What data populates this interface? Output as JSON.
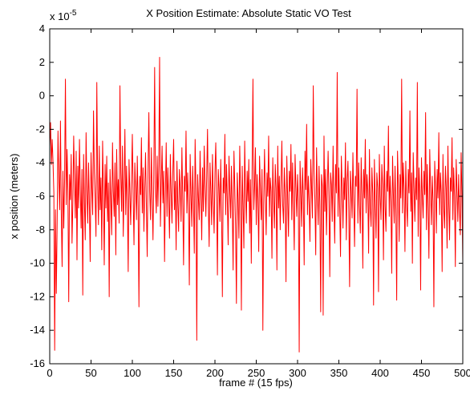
{
  "chart_data": {
    "type": "line",
    "title": "X Position Estimate: Absolute Static VO Test",
    "xlabel": "frame # (15 fps)",
    "ylabel": "x position (meters)",
    "exponent_label": "x 10",
    "exponent_power": "-5",
    "xlim": [
      0,
      500
    ],
    "ylim": [
      -16,
      4
    ],
    "xticks": [
      0,
      50,
      100,
      150,
      200,
      250,
      300,
      350,
      400,
      450,
      500
    ],
    "yticks": [
      -16,
      -14,
      -12,
      -10,
      -8,
      -6,
      -4,
      -2,
      0,
      2,
      4
    ],
    "grid": false,
    "series_color": "#ff0000",
    "series": [
      {
        "values": [
          -3.0,
          -1.6,
          -4.1,
          -2.6,
          -4.0,
          -5.8,
          -15.2,
          -6.8,
          -11.8,
          -7.5,
          -2.1,
          -4.8,
          -6.8,
          -1.5,
          -7.0,
          -10.2,
          -4.5,
          -7.9,
          -5.0,
          1.0,
          -6.5,
          -3.2,
          -5.7,
          -12.3,
          -4.7,
          -6.2,
          -3.5,
          -8.8,
          -6.4,
          -2.4,
          -5.1,
          -7.3,
          -3.3,
          -9.8,
          -4.2,
          -6.7,
          -2.6,
          -5.6,
          -7.9,
          -4.4,
          -11.9,
          -3.5,
          -6.3,
          -8.6,
          -2.2,
          -5.7,
          -7.6,
          -4.0,
          -6.5,
          -9.9,
          -3.4,
          -5.5,
          -7.1,
          -0.9,
          -4.6,
          -6.1,
          -8.4,
          0.8,
          -5.1,
          -7.7,
          -3.0,
          -6.8,
          -4.9,
          -9.2,
          -2.7,
          -5.7,
          -10.1,
          -4.1,
          -6.7,
          -3.6,
          -7.5,
          -5.2,
          -12.0,
          -4.4,
          -6.2,
          -8.3,
          -2.8,
          -5.7,
          -7.2,
          -4.0,
          -9.5,
          -3.2,
          -6.5,
          -5.0,
          -7.6,
          0.6,
          -4.6,
          -6.9,
          -3.0,
          -8.4,
          -5.4,
          -2.0,
          -7.1,
          -4.2,
          -6.3,
          -10.5,
          -3.8,
          -5.8,
          -7.7,
          -4.9,
          -2.3,
          -6.1,
          -8.9,
          -4.0,
          -5.5,
          -7.4,
          -3.6,
          -6.6,
          -12.6,
          -4.8,
          -5.9,
          -2.5,
          -7.0,
          -4.3,
          -8.1,
          -5.6,
          -3.4,
          -6.5,
          -9.6,
          -4.5,
          -1.0,
          -5.7,
          -7.4,
          -3.1,
          -6.2,
          -8.6,
          -4.7,
          1.7,
          -5.5,
          -7.0,
          -3.6,
          -6.6,
          -4.1,
          2.3,
          -7.8,
          -5.2,
          -3.0,
          -6.4,
          -4.5,
          -9.9,
          -5.9,
          -2.8,
          -7.2,
          -4.3,
          -6.1,
          -8.5,
          -3.5,
          -5.8,
          -7.6,
          -4.6,
          -2.6,
          -6.8,
          -5.1,
          -9.2,
          -3.9,
          -6.4,
          -8.1,
          -4.4,
          -5.5,
          -7.5,
          -3.1,
          -6.2,
          -10.1,
          -4.8,
          -5.7,
          -2.1,
          -7.0,
          -4.6,
          -6.6,
          -11.3,
          -3.5,
          -5.9,
          -7.8,
          -4.2,
          -6.3,
          -9.4,
          -2.6,
          -5.6,
          -14.6,
          -4.7,
          -6.1,
          -7.4,
          -3.3,
          -5.8,
          -8.6,
          -4.3,
          -6.9,
          -3.0,
          -5.3,
          -7.2,
          -4.8,
          -2.0,
          -6.5,
          -9.0,
          -4.0,
          -5.7,
          -7.7,
          -3.5,
          -6.3,
          -8.2,
          -4.6,
          -2.8,
          -6.0,
          -10.7,
          -4.4,
          -5.5,
          -7.5,
          -3.8,
          -6.8,
          -12.0,
          -4.9,
          -5.8,
          -2.3,
          -7.1,
          -4.1,
          -6.3,
          -8.9,
          -3.6,
          -5.7,
          -7.3,
          -4.2,
          -6.7,
          -10.4,
          -3.3,
          -5.4,
          -7.9,
          -12.4,
          -4.6,
          -6.2,
          -8.5,
          -3.0,
          -5.9,
          -12.8,
          -4.2,
          -6.5,
          -9.1,
          -2.7,
          -5.8,
          -7.6,
          -4.5,
          -6.3,
          -3.8,
          -8.2,
          -5.0,
          -10.0,
          -4.3,
          1.0,
          -6.8,
          -5.4,
          -3.1,
          -7.7,
          -4.7,
          -6.1,
          -9.3,
          -3.6,
          -5.6,
          -7.4,
          -4.4,
          -14.0,
          -6.5,
          -3.2,
          -5.8,
          -8.3,
          -4.6,
          -6.0,
          -2.4,
          -7.2,
          -4.9,
          -5.7,
          -9.7,
          -3.7,
          -6.3,
          -7.9,
          -4.1,
          -5.5,
          -10.4,
          -3.0,
          -6.7,
          -4.8,
          -8.0,
          -5.2,
          -2.7,
          -6.5,
          -7.6,
          -4.3,
          -5.9,
          -11.1,
          -3.6,
          -6.1,
          -8.4,
          -4.5,
          -5.7,
          -2.9,
          -7.4,
          -4.0,
          -6.6,
          -9.2,
          -3.5,
          -5.5,
          -7.2,
          -4.7,
          -6.3,
          -15.3,
          -3.9,
          -5.8,
          -7.8,
          -4.3,
          -6.1,
          -10.1,
          -3.3,
          -5.6,
          -1.7,
          -7.1,
          -4.8,
          -6.4,
          -8.7,
          -3.8,
          -5.5,
          -7.3,
          0.6,
          -4.5,
          -6.2,
          -9.5,
          -3.1,
          -5.9,
          -7.7,
          -4.2,
          -6.6,
          -12.9,
          -4.7,
          -5.4,
          -13.1,
          -2.4,
          -6.9,
          -4.4,
          -8.3,
          -5.7,
          -3.3,
          -6.0,
          -10.8,
          -4.6,
          -5.3,
          -7.5,
          -3.0,
          -6.4,
          -8.8,
          -4.1,
          -5.8,
          1.4,
          -7.2,
          -4.3,
          -6.7,
          -9.6,
          -3.6,
          -5.5,
          -7.9,
          -4.9,
          -6.2,
          -2.8,
          -8.6,
          -5.1,
          -3.9,
          -6.8,
          -11.4,
          -4.5,
          -5.7,
          -7.3,
          -3.4,
          -6.3,
          -9.0,
          -4.8,
          -5.4,
          0.4,
          -7.6,
          -4.0,
          -6.5,
          -8.2,
          -3.7,
          -5.9,
          -10.3,
          -4.4,
          -6.1,
          -2.6,
          -7.0,
          -4.7,
          -5.6,
          -9.4,
          -3.2,
          -6.7,
          -7.8,
          -4.3,
          -5.8,
          -12.5,
          -3.8,
          -6.2,
          -8.5,
          -4.6,
          -5.5,
          -11.7,
          -3.5,
          -6.0,
          -7.4,
          -4.1,
          -5.3,
          -9.8,
          -3.0,
          -6.6,
          -8.1,
          -4.5,
          -5.7,
          -1.8,
          -7.2,
          -4.8,
          -6.3,
          -10.6,
          -3.6,
          -5.9,
          -7.6,
          -4.2,
          -6.8,
          -12.2,
          -3.3,
          -5.4,
          -8.7,
          -4.7,
          -6.1,
          1.0,
          -7.0,
          -4.0,
          -5.6,
          -9.3,
          -3.9,
          -6.4,
          -7.8,
          -4.4,
          -5.8,
          -0.9,
          -6.9,
          -4.6,
          -10.0,
          -3.4,
          -5.5,
          -7.5,
          -4.9,
          -6.2,
          0.8,
          -8.4,
          -4.3,
          -5.7,
          -11.6,
          -3.7,
          -6.0,
          -7.3,
          -4.5,
          -5.9,
          -1.0,
          -8.0,
          -4.1,
          -6.5,
          -9.7,
          -3.2,
          -5.6,
          -7.7,
          -4.8,
          -6.3,
          -12.6,
          -3.9,
          -5.4,
          -8.2,
          -4.4,
          -6.1,
          -2.2,
          -7.1,
          -4.6,
          -5.8,
          -10.5,
          -3.5,
          -6.7,
          -7.9,
          -4.2,
          -5.5,
          -9.1,
          -3.0,
          -6.4,
          -8.6,
          -4.9,
          -5.7,
          -2.5,
          -7.4,
          -4.3,
          -6.0,
          -10.2,
          -3.8,
          -5.6,
          -7.5,
          -4.7,
          -6.8,
          -8.3,
          -3.4,
          -5.9,
          -9.9
        ]
      }
    ]
  }
}
